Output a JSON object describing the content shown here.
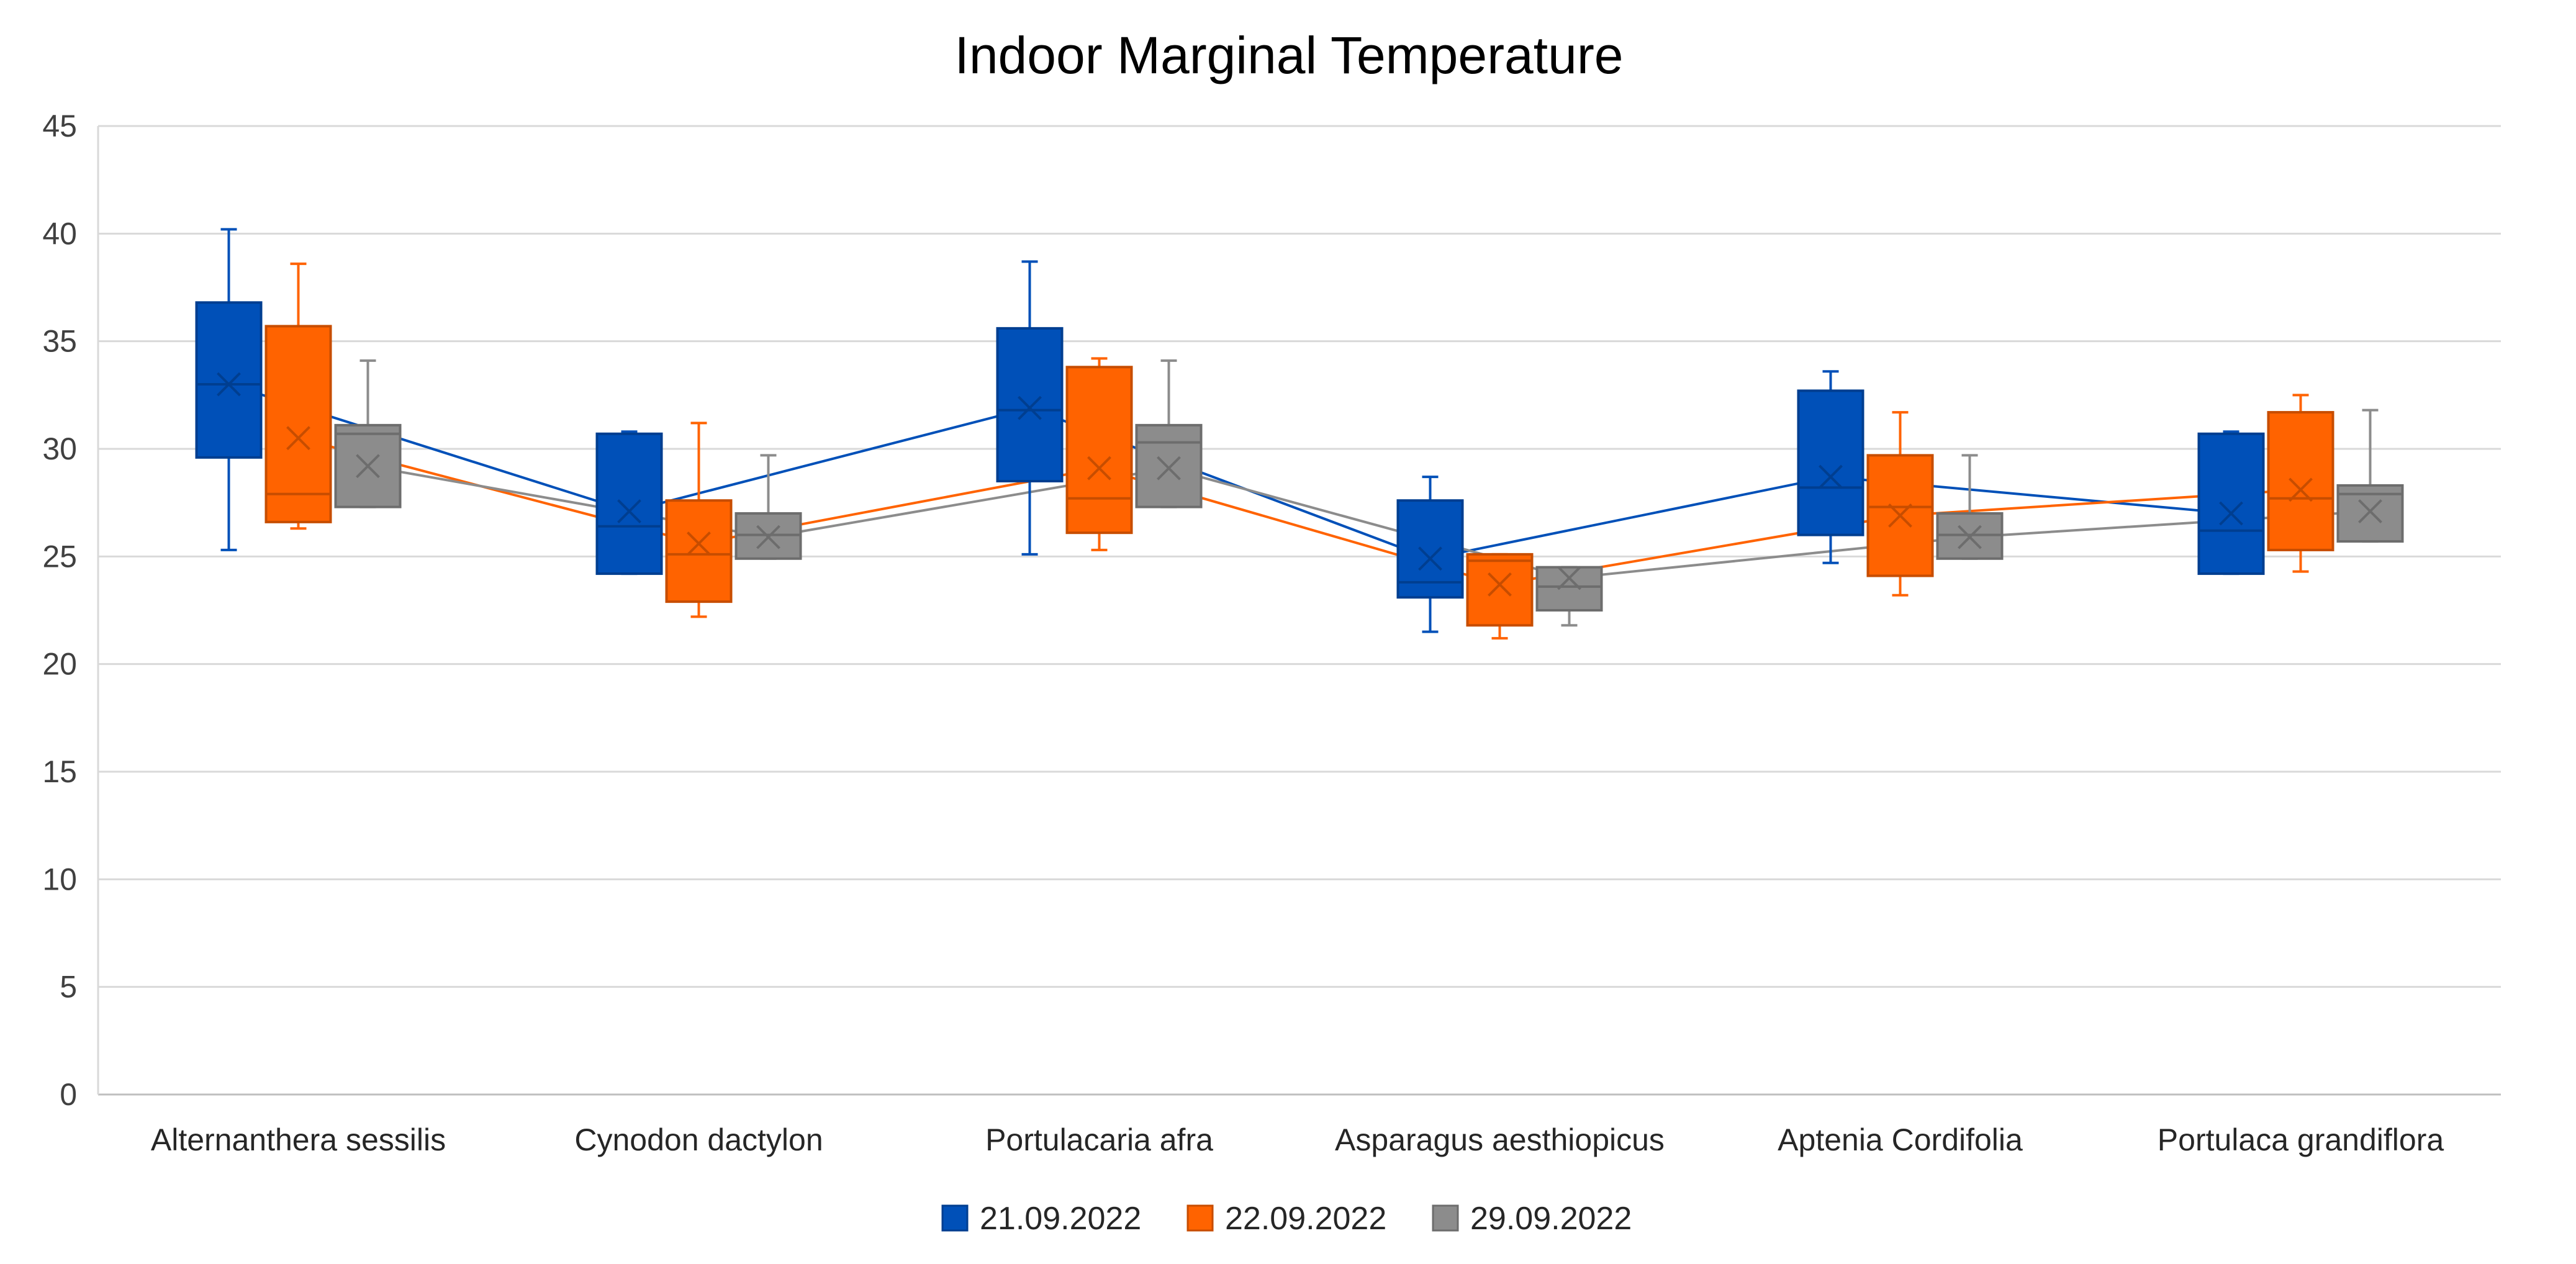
{
  "chart_data": {
    "type": "box",
    "title": "Indoor Marginal Temperature",
    "xlabel": "",
    "ylabel": "",
    "ylim": [
      0,
      45
    ],
    "yticks": [
      "0",
      "5",
      "10",
      "15",
      "20",
      "25",
      "30",
      "35",
      "40",
      "45"
    ],
    "grid": true,
    "legend_position": "bottom",
    "categories": [
      "Alternanthera sessilis",
      "Cynodon dactylon",
      "Portulacaria afra",
      "Asparagus aesthiopicus",
      "Aptenia Cordifolia",
      "Portulaca grandiflora"
    ],
    "series": [
      {
        "name": "21.09.2022",
        "color": "#0050b8",
        "boxes": [
          {
            "min": 25.3,
            "q1": 29.6,
            "median": 33.0,
            "q3": 36.8,
            "max": 40.2,
            "mean": 33.0
          },
          {
            "min": 24.2,
            "q1": 24.2,
            "median": 26.4,
            "q3": 30.7,
            "max": 30.8,
            "mean": 27.1
          },
          {
            "min": 25.1,
            "q1": 28.5,
            "median": 31.8,
            "q3": 35.6,
            "max": 38.7,
            "mean": 31.9
          },
          {
            "min": 21.5,
            "q1": 23.1,
            "median": 23.8,
            "q3": 27.6,
            "max": 28.7,
            "mean": 24.9
          },
          {
            "min": 24.7,
            "q1": 26.0,
            "median": 28.2,
            "q3": 32.7,
            "max": 33.6,
            "mean": 28.7
          },
          {
            "min": 24.2,
            "q1": 24.2,
            "median": 26.2,
            "q3": 30.7,
            "max": 30.8,
            "mean": 27.0
          }
        ]
      },
      {
        "name": "22.09.2022",
        "color": "#ff6300",
        "boxes": [
          {
            "min": 26.3,
            "q1": 26.6,
            "median": 27.9,
            "q3": 35.7,
            "max": 38.6,
            "mean": 30.5
          },
          {
            "min": 22.2,
            "q1": 22.9,
            "median": 25.1,
            "q3": 27.6,
            "max": 31.2,
            "mean": 25.6
          },
          {
            "min": 25.3,
            "q1": 26.1,
            "median": 27.7,
            "q3": 33.8,
            "max": 34.2,
            "mean": 29.1
          },
          {
            "min": 21.2,
            "q1": 21.8,
            "median": 24.8,
            "q3": 25.1,
            "max": 25.1,
            "mean": 23.7
          },
          {
            "min": 23.2,
            "q1": 24.1,
            "median": 27.3,
            "q3": 29.7,
            "max": 31.7,
            "mean": 26.9
          },
          {
            "min": 24.3,
            "q1": 25.3,
            "median": 27.7,
            "q3": 31.7,
            "max": 32.5,
            "mean": 28.1
          }
        ]
      },
      {
        "name": "29.09.2022",
        "color": "#8c8c8c",
        "boxes": [
          {
            "min": 27.3,
            "q1": 27.3,
            "median": 30.7,
            "q3": 31.1,
            "max": 34.1,
            "mean": 29.2
          },
          {
            "min": 24.9,
            "q1": 24.9,
            "median": 26.0,
            "q3": 27.0,
            "max": 29.7,
            "mean": 25.9
          },
          {
            "min": 27.3,
            "q1": 27.3,
            "median": 30.3,
            "q3": 31.1,
            "max": 34.1,
            "mean": 29.1
          },
          {
            "min": 21.8,
            "q1": 22.5,
            "median": 23.6,
            "q3": 24.5,
            "max": 24.5,
            "mean": 24.0
          },
          {
            "min": 24.9,
            "q1": 24.9,
            "median": 26.0,
            "q3": 27.0,
            "max": 29.7,
            "mean": 25.9
          },
          {
            "min": 25.7,
            "q1": 25.7,
            "median": 27.9,
            "q3": 28.3,
            "max": 31.8,
            "mean": 27.1
          }
        ]
      }
    ]
  }
}
